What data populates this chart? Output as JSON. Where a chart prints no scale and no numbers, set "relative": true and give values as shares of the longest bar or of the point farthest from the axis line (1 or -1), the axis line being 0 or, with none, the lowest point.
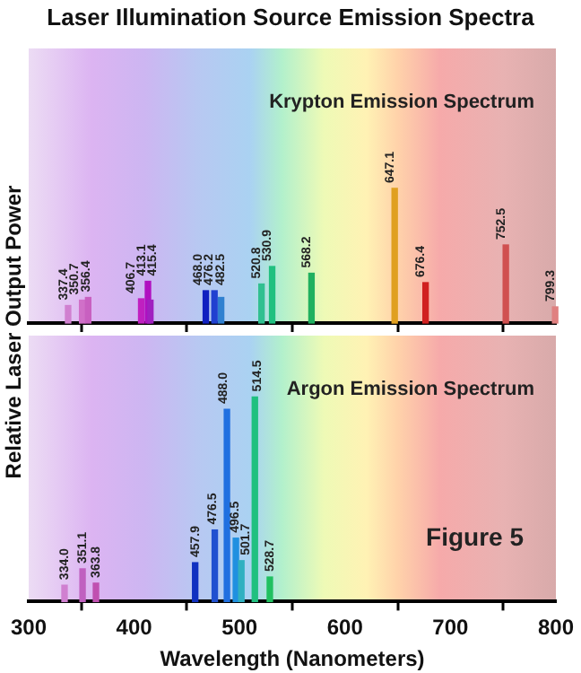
{
  "chart_data": [
    {
      "type": "bar",
      "title": "Laser Illumination Source Emission Spectra",
      "ylabel": "Relative Laser Output Power",
      "relative": true,
      "tick_labels": false,
      "xlim": [
        300,
        800
      ],
      "xticks": [
        300,
        400,
        500,
        600,
        700,
        800
      ],
      "x": [
        337.4,
        350.7,
        356.4,
        406.7,
        413.1,
        415.4,
        468.0,
        476.2,
        482.5,
        520.8,
        530.9,
        568.2,
        647.1,
        676.4,
        752.5,
        799.3
      ],
      "values": [
        0.13,
        0.17,
        0.19,
        0.18,
        0.31,
        0.17,
        0.24,
        0.24,
        0.19,
        0.29,
        0.42,
        0.37,
        1,
        0.3,
        0.58,
        0.12
      ],
      "colors": [
        "#d080d0",
        "#d070c8",
        "#c860c0",
        "#c020c0",
        "#b010c0",
        "#a020c0",
        "#1020c0",
        "#2040d0",
        "#3080d0",
        "#30c090",
        "#20c080",
        "#20b060",
        "#e0a020",
        "#d02020",
        "#d05050",
        "#e08080"
      ],
      "annotations": [
        "Krypton Emission Spectrum",
        {
          "text": "337.4",
          "x": 337.4,
          "y": 0.13
        },
        {
          "text": "350.7",
          "x": 350.7,
          "y": 0.17
        },
        {
          "text": "356.4",
          "x": 356.4,
          "y": 0.19
        },
        {
          "text": "406.7",
          "x": 406.7,
          "y": 0.18
        },
        {
          "text": "413.1",
          "x": 413.1,
          "y": 0.31
        },
        {
          "text": "415.4",
          "x": 415.4,
          "y": 0.17
        },
        {
          "text": "468.0",
          "x": 468.0,
          "y": 0.24
        },
        {
          "text": "476.2",
          "x": 476.2,
          "y": 0.24
        },
        {
          "text": "482.5",
          "x": 482.5,
          "y": 0.19
        },
        {
          "text": "520.8",
          "x": 520.8,
          "y": 0.29
        },
        {
          "text": "530.9",
          "x": 530.9,
          "y": 0.42
        },
        {
          "text": "568.2",
          "x": 568.2,
          "y": 0.37
        },
        {
          "text": "647.1",
          "x": 647.1,
          "y": 1
        },
        {
          "text": "676.4",
          "x": 676.4,
          "y": 0.3
        },
        {
          "text": "752.5",
          "x": 752.5,
          "y": 0.58
        },
        {
          "text": "799.3",
          "x": 799.3,
          "y": 0.12
        }
      ]
    },
    {
      "type": "bar",
      "xlabel": "Wavelength (Nanometers)",
      "relative": true,
      "tick_labels": "x",
      "xlim": [
        300,
        800
      ],
      "xticks": [
        300,
        400,
        500,
        600,
        700,
        800
      ],
      "x": [
        334.0,
        351.1,
        363.8,
        457.9,
        476.5,
        488.0,
        496.5,
        501.7,
        514.5,
        528.7
      ],
      "values": [
        0.08,
        0.16,
        0.09,
        0.19,
        0.35,
        0.94,
        0.31,
        0.2,
        1,
        0.12
      ],
      "colors": [
        "#d080d0",
        "#c060c0",
        "#c050b0",
        "#1030c0",
        "#2050d0",
        "#2070e0",
        "#2090e0",
        "#30b0c0",
        "#20c080",
        "#20c060"
      ],
      "annotations": [
        "Argon Emission Spectrum",
        "Figure 5",
        {
          "text": "334.0",
          "x": 334.0,
          "y": 0.08
        },
        {
          "text": "351.1",
          "x": 351.1,
          "y": 0.16
        },
        {
          "text": "363.8",
          "x": 363.8,
          "y": 0.09
        },
        {
          "text": "457.9",
          "x": 457.9,
          "y": 0.19
        },
        {
          "text": "476.5",
          "x": 476.5,
          "y": 0.35
        },
        {
          "text": "488.0",
          "x": 488.0,
          "y": 0.94
        },
        {
          "text": "496.5",
          "x": 496.5,
          "y": 0.31
        },
        {
          "text": "501.7",
          "x": 501.7,
          "y": 0.2
        },
        {
          "text": "514.5",
          "x": 514.5,
          "y": 1
        },
        {
          "text": "528.7",
          "x": 528.7,
          "y": 0.12
        }
      ]
    }
  ]
}
